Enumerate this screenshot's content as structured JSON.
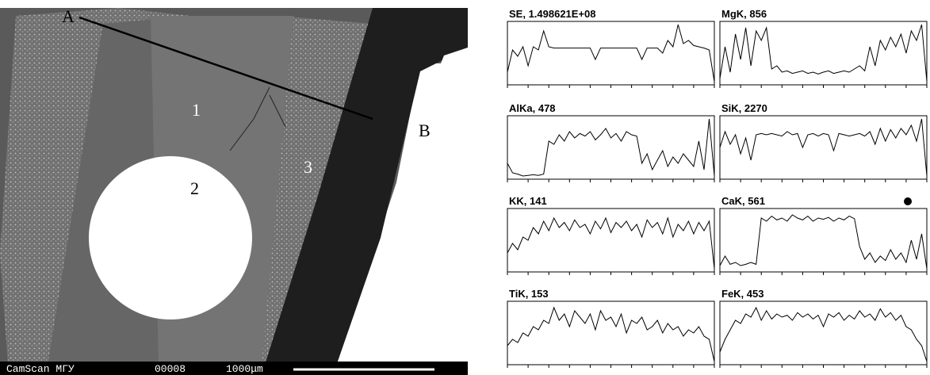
{
  "image": {
    "labels": [
      "A",
      "B",
      "1",
      "2",
      "3"
    ],
    "footer": [
      "CamScan МГУ",
      "00008",
      "1000μm"
    ]
  },
  "chart_data": [
    {
      "type": "line",
      "title": "SE, 1.498621E+08",
      "ylim": [
        0,
        100
      ],
      "values": [
        20,
        55,
        45,
        60,
        30,
        60,
        55,
        85,
        60,
        58,
        58,
        58,
        58,
        58,
        58,
        58,
        58,
        40,
        58,
        58,
        58,
        58,
        58,
        58,
        58,
        58,
        40,
        58,
        58,
        58,
        50,
        70,
        60,
        95,
        65,
        70,
        62,
        60,
        58,
        55,
        5
      ]
    },
    {
      "type": "line",
      "title": "MgK, 856",
      "ylim": [
        0,
        100
      ],
      "values": [
        10,
        60,
        20,
        80,
        40,
        90,
        30,
        85,
        70,
        90,
        25,
        30,
        20,
        22,
        18,
        20,
        22,
        18,
        20,
        17,
        20,
        22,
        18,
        20,
        22,
        20,
        25,
        30,
        22,
        60,
        30,
        70,
        55,
        75,
        60,
        80,
        50,
        85,
        70,
        95,
        5
      ]
    },
    {
      "type": "line",
      "title": "AlKa, 478",
      "ylim": [
        0,
        100
      ],
      "values": [
        25,
        10,
        8,
        5,
        6,
        7,
        6,
        8,
        60,
        55,
        70,
        60,
        75,
        65,
        72,
        68,
        75,
        62,
        70,
        80,
        65,
        72,
        60,
        75,
        70,
        68,
        25,
        40,
        15,
        30,
        45,
        20,
        35,
        25,
        40,
        30,
        20,
        60,
        15,
        95,
        5
      ]
    },
    {
      "type": "line",
      "title": "SiK, 2270",
      "ylim": [
        0,
        100
      ],
      "values": [
        50,
        75,
        55,
        70,
        40,
        65,
        30,
        70,
        72,
        70,
        72,
        70,
        68,
        75,
        70,
        72,
        50,
        70,
        72,
        68,
        72,
        70,
        45,
        72,
        70,
        68,
        70,
        72,
        68,
        75,
        55,
        80,
        60,
        78,
        65,
        80,
        70,
        85,
        60,
        95,
        5
      ]
    },
    {
      "type": "line",
      "title": "KK, 141",
      "ylim": [
        0,
        100
      ],
      "values": [
        30,
        45,
        35,
        55,
        50,
        70,
        60,
        80,
        65,
        85,
        70,
        78,
        65,
        82,
        70,
        75,
        60,
        80,
        68,
        85,
        62,
        78,
        70,
        80,
        65,
        75,
        55,
        82,
        70,
        78,
        60,
        85,
        55,
        75,
        65,
        80,
        60,
        78,
        65,
        80,
        5
      ]
    },
    {
      "type": "line",
      "title": "CaK, 561",
      "ylim": [
        0,
        100
      ],
      "values": [
        10,
        25,
        12,
        15,
        10,
        12,
        15,
        12,
        85,
        80,
        88,
        82,
        85,
        80,
        90,
        85,
        82,
        88,
        80,
        85,
        83,
        86,
        80,
        85,
        82,
        88,
        84,
        40,
        20,
        30,
        15,
        25,
        18,
        35,
        20,
        30,
        15,
        50,
        20,
        60,
        5
      ]
    },
    {
      "type": "line",
      "title": "TiK, 153",
      "ylim": [
        0,
        100
      ],
      "values": [
        30,
        40,
        35,
        50,
        45,
        60,
        55,
        70,
        65,
        90,
        70,
        80,
        60,
        85,
        75,
        65,
        80,
        55,
        85,
        70,
        75,
        60,
        80,
        50,
        70,
        65,
        75,
        55,
        60,
        70,
        50,
        65,
        55,
        60,
        45,
        55,
        50,
        60,
        45,
        40,
        5
      ]
    },
    {
      "type": "line",
      "title": "FeK, 453",
      "ylim": [
        0,
        100
      ],
      "values": [
        20,
        40,
        55,
        70,
        65,
        80,
        75,
        90,
        70,
        85,
        72,
        80,
        75,
        78,
        70,
        82,
        75,
        80,
        72,
        78,
        60,
        80,
        75,
        82,
        70,
        78,
        72,
        85,
        75,
        80,
        70,
        88,
        75,
        82,
        70,
        78,
        60,
        55,
        40,
        30,
        5
      ]
    }
  ]
}
